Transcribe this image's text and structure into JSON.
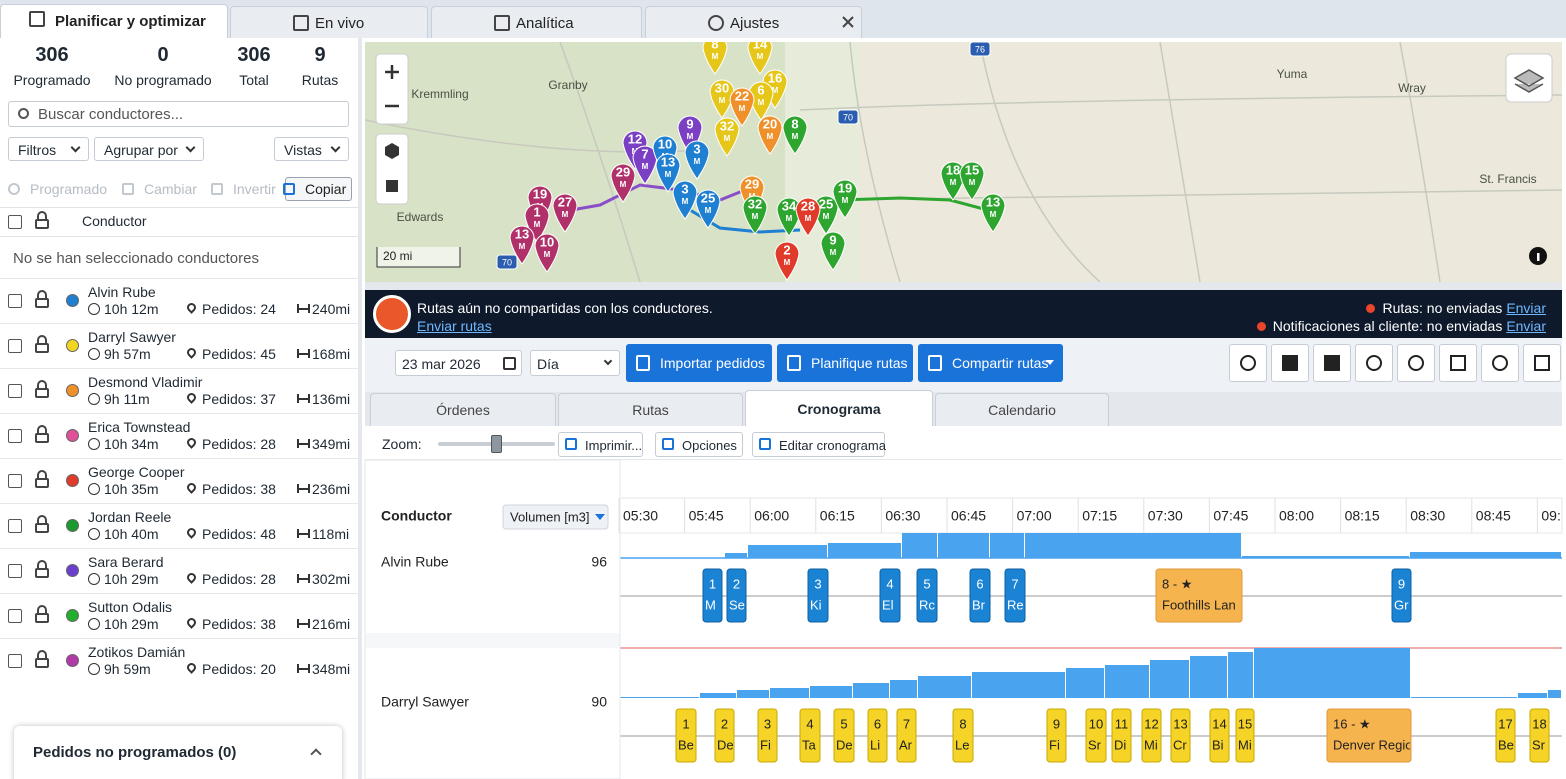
{
  "tabs": [
    "Planificar y optimizar",
    "En vivo",
    "Analítica",
    "Ajustes"
  ],
  "stats": [
    {
      "value": 306,
      "label": "Programado"
    },
    {
      "value": 0,
      "label": "No programado"
    },
    {
      "value": 306,
      "label": "Total"
    },
    {
      "value": 9,
      "label": "Rutas"
    }
  ],
  "search_placeholder": "Buscar conductores...",
  "filters": [
    "Filtros",
    "Agrupar por",
    "Vistas"
  ],
  "actions": [
    "Programado",
    "Cambiar",
    "Invertir",
    "Copiar"
  ],
  "list_header": "Conductor",
  "no_selection": "No se han seleccionado conductores",
  "drivers": [
    {
      "name": "Alvin Rube",
      "time": "10h 12m",
      "orders": "Pedidos: 24",
      "distance": "240mi",
      "color": "#1f7fd0"
    },
    {
      "name": "Darryl Sawyer",
      "time": "9h 57m",
      "orders": "Pedidos: 45",
      "distance": "168mi",
      "color": "#f2d522"
    },
    {
      "name": "Desmond Vladimir",
      "time": "9h 11m",
      "orders": "Pedidos: 37",
      "distance": "136mi",
      "color": "#f0902a"
    },
    {
      "name": "Erica Townstead",
      "time": "10h 34m",
      "orders": "Pedidos: 28",
      "distance": "349mi",
      "color": "#e0509a"
    },
    {
      "name": "George Cooper",
      "time": "10h 35m",
      "orders": "Pedidos: 38",
      "distance": "236mi",
      "color": "#e03a2a"
    },
    {
      "name": "Jordan Reele",
      "time": "10h 40m",
      "orders": "Pedidos: 48",
      "distance": "118mi",
      "color": "#1d9a2e"
    },
    {
      "name": "Sara Berard",
      "time": "10h 29m",
      "orders": "Pedidos: 28",
      "distance": "302mi",
      "color": "#6a3fd0"
    },
    {
      "name": "Sutton Odalis",
      "time": "10h 29m",
      "orders": "Pedidos: 38",
      "distance": "216mi",
      "color": "#22b02c"
    },
    {
      "name": "Zotikos Damián",
      "time": "9h 59m",
      "orders": "Pedidos: 20",
      "distance": "348mi",
      "color": "#b23aa8"
    }
  ],
  "unscheduled": "Pedidos no programados (0)",
  "map": {
    "places": [
      "Kremmling",
      "Granby",
      "Edwards",
      "Yuma",
      "Wray",
      "St. Francis"
    ],
    "roads": [
      "76",
      "70",
      "70"
    ],
    "scale": "20 mi",
    "pin_sub": "M",
    "pins": [
      {
        "n": "8",
        "color": "#e6c619"
      },
      {
        "n": "14",
        "color": "#e6c619"
      },
      {
        "n": "16",
        "color": "#e6c619"
      },
      {
        "n": "30",
        "color": "#e6c619"
      },
      {
        "n": "6",
        "color": "#e6c619"
      },
      {
        "n": "32",
        "color": "#e6c619"
      },
      {
        "n": "22",
        "color": "#f0902a"
      },
      {
        "n": "20",
        "color": "#f0902a"
      },
      {
        "n": "29",
        "color": "#f0902a"
      },
      {
        "n": "12",
        "color": "#7b3fc4"
      },
      {
        "n": "7",
        "color": "#7b3fc4"
      },
      {
        "n": "9",
        "color": "#7b3fc4"
      },
      {
        "n": "29",
        "color": "#b0306a"
      },
      {
        "n": "10",
        "color": "#1f7fd0"
      },
      {
        "n": "3",
        "color": "#1f7fd0"
      },
      {
        "n": "13",
        "color": "#1f7fd0"
      },
      {
        "n": "3",
        "color": "#1f7fd0"
      },
      {
        "n": "25",
        "color": "#1f7fd0"
      },
      {
        "n": "19",
        "color": "#b0306a"
      },
      {
        "n": "27",
        "color": "#b0306a"
      },
      {
        "n": "1",
        "color": "#b0306a"
      },
      {
        "n": "13",
        "color": "#b0306a"
      },
      {
        "n": "10",
        "color": "#b0306a"
      },
      {
        "n": "8",
        "color": "#2ea52e"
      },
      {
        "n": "25",
        "color": "#2ea52e"
      },
      {
        "n": "19",
        "color": "#2ea52e"
      },
      {
        "n": "32",
        "color": "#2ea52e"
      },
      {
        "n": "34",
        "color": "#2ea52e"
      },
      {
        "n": "28",
        "color": "#e03a2a"
      },
      {
        "n": "2",
        "color": "#e03a2a"
      },
      {
        "n": "9",
        "color": "#2ea52e"
      },
      {
        "n": "18",
        "color": "#2ea52e"
      },
      {
        "n": "15",
        "color": "#2ea52e"
      },
      {
        "n": "13",
        "color": "#2ea52e"
      }
    ]
  },
  "banner": {
    "message": "Rutas aún no compartidas con los conductores.",
    "link": "Enviar rutas",
    "routes_status": "Rutas: no enviadas",
    "notify_status": "Notificaciones al cliente: no enviadas",
    "send": "Enviar"
  },
  "toolbar": {
    "date": "23 mar 2026",
    "view": "Día",
    "buttons": [
      "Importar pedidos",
      "Planifique rutas",
      "Compartir rutas"
    ]
  },
  "view_tabs": [
    "Órdenes",
    "Rutas",
    "Cronograma",
    "Calendario"
  ],
  "timeline_toolbar": {
    "zoom": "Zoom:",
    "buttons": [
      "Imprimir...",
      "Opciones",
      "Editar cronograma"
    ]
  },
  "timeline": {
    "driver_header": "Conductor",
    "volume_header": "Volumen [m3]",
    "times": [
      "05:30",
      "05:45",
      "06:00",
      "06:15",
      "06:30",
      "06:45",
      "07:00",
      "07:15",
      "07:30",
      "07:45",
      "08:00",
      "08:15",
      "08:30",
      "08:45",
      "09:"
    ],
    "rows": [
      {
        "driver": "Alvin Rube",
        "volume": 96,
        "stops": [
          {
            "num": "1",
            "label": "M"
          },
          {
            "num": "2",
            "label": "Se"
          },
          {
            "num": "3",
            "label": "Ki"
          },
          {
            "num": "4",
            "label": "El"
          },
          {
            "num": "5",
            "label": "Rc"
          },
          {
            "num": "6",
            "label": "Br"
          },
          {
            "num": "7",
            "label": "Re"
          },
          {
            "num": "8 - ★",
            "label": "Foothills Lan"
          },
          {
            "num": "9",
            "label": "Gr"
          }
        ]
      },
      {
        "driver": "Darryl Sawyer",
        "volume": 90,
        "stops": [
          {
            "num": "1",
            "label": "Be"
          },
          {
            "num": "2",
            "label": "De"
          },
          {
            "num": "3",
            "label": "Fi"
          },
          {
            "num": "4",
            "label": "Ta"
          },
          {
            "num": "5",
            "label": "De"
          },
          {
            "num": "6",
            "label": "Li"
          },
          {
            "num": "7",
            "label": "Ar"
          },
          {
            "num": "8",
            "label": "Le"
          },
          {
            "num": "9",
            "label": "Fi"
          },
          {
            "num": "10",
            "label": "Sr"
          },
          {
            "num": "11",
            "label": "Di"
          },
          {
            "num": "12",
            "label": "Mi"
          },
          {
            "num": "13",
            "label": "Cr"
          },
          {
            "num": "14",
            "label": "Bi"
          },
          {
            "num": "15",
            "label": "Mi"
          },
          {
            "num": "16 - ★",
            "label": "Denver Regio"
          },
          {
            "num": "17",
            "label": "Be"
          },
          {
            "num": "18",
            "label": "Sr"
          }
        ]
      }
    ]
  }
}
